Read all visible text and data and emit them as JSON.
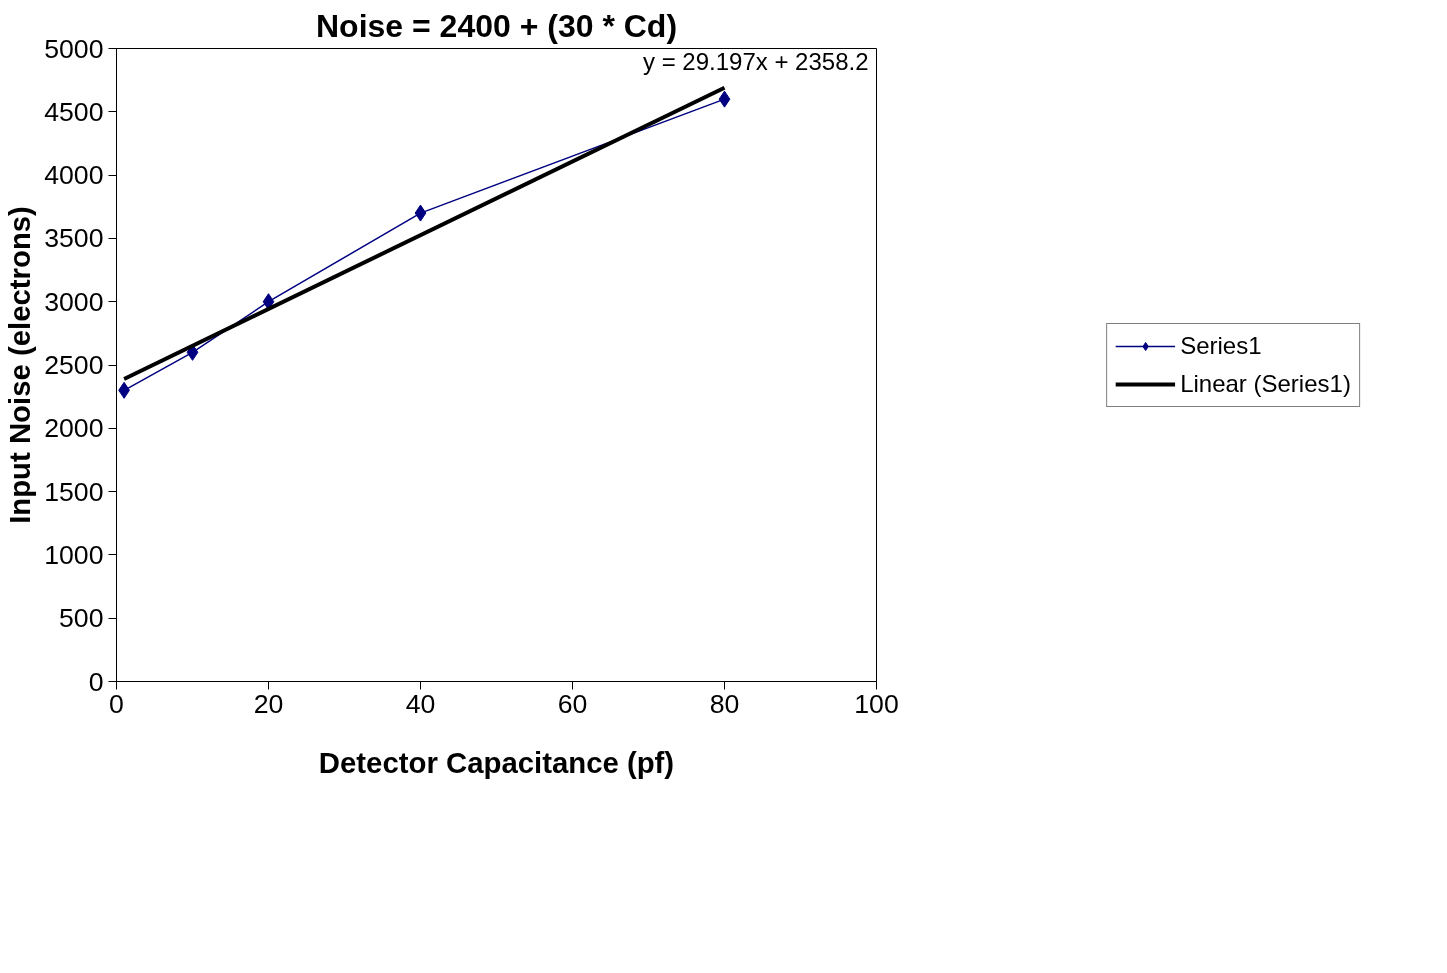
{
  "chart_data": {
    "type": "line",
    "title": "Noise = 2400 + (30 * Cd)",
    "xlabel": "Detector Capacitance (pf)",
    "ylabel": "Input Noise (electrons)",
    "x": [
      1,
      10,
      20,
      40,
      80
    ],
    "series": [
      {
        "name": "Series1",
        "color": "#000080",
        "values": [
          2300,
          2600,
          3000,
          3700,
          4600
        ],
        "marker": "diamond",
        "line_style": "solid"
      },
      {
        "name": "Linear (Series1)",
        "color": "#000000",
        "x": [
          1,
          80
        ],
        "values": [
          2390,
          4690
        ],
        "marker": "none",
        "line_style": "solid"
      }
    ],
    "annotations": [
      "y = 29.197x + 2358.2"
    ],
    "xlim": [
      0,
      100
    ],
    "xticks": [
      0,
      20,
      40,
      60,
      80,
      100
    ],
    "ylim": [
      0,
      5000
    ],
    "yticks": [
      0,
      500,
      1000,
      1500,
      2000,
      2500,
      3000,
      3500,
      4000,
      4500,
      5000
    ],
    "grid": false,
    "legend": "right"
  }
}
